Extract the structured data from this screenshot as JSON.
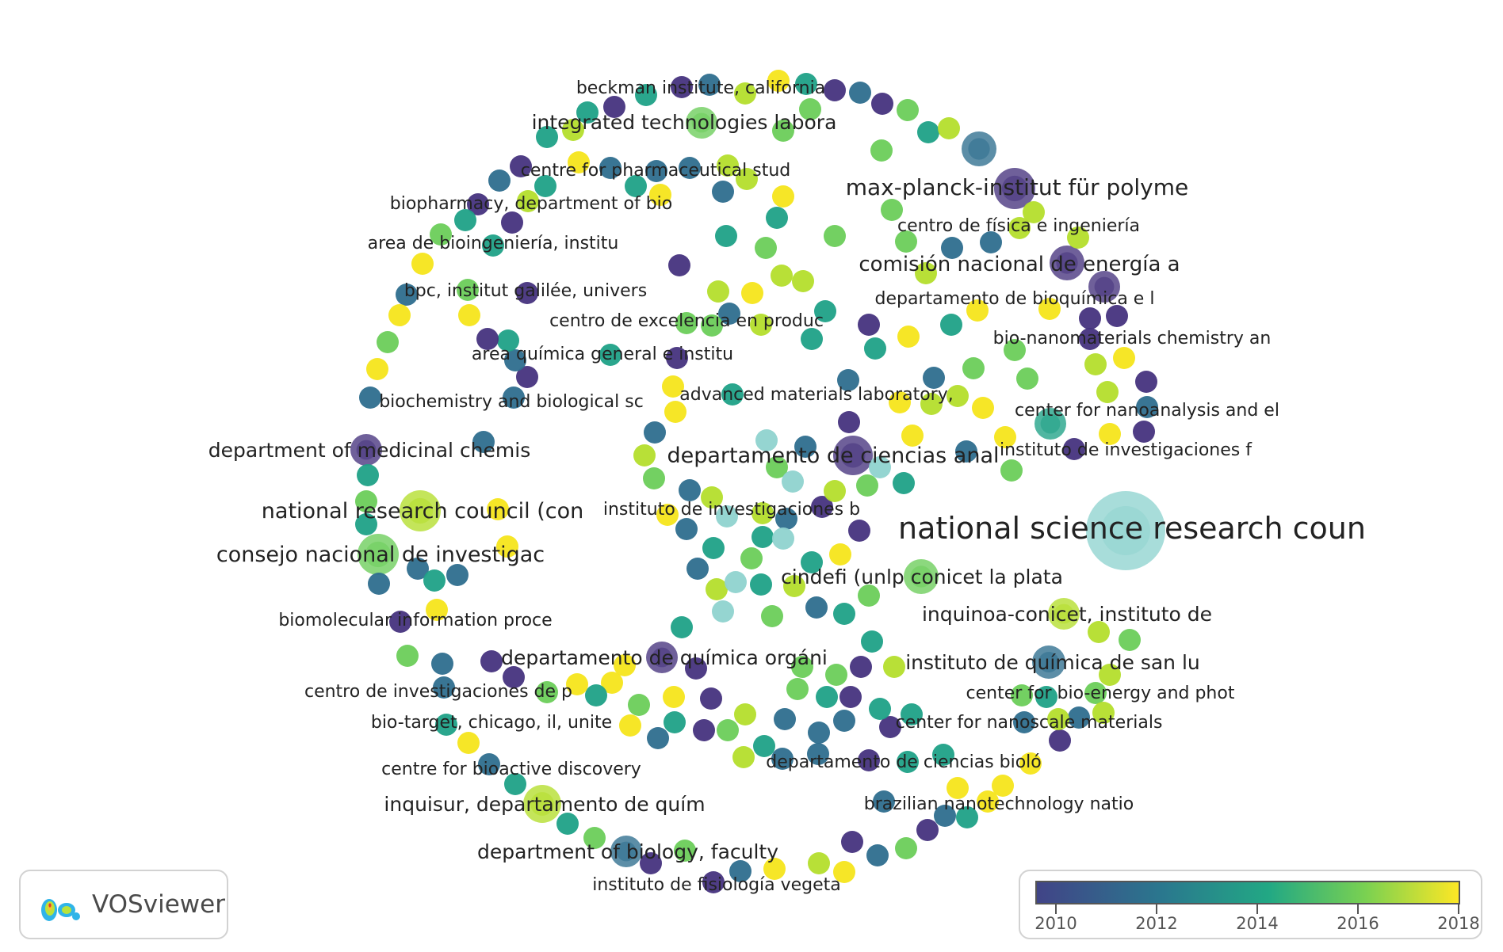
{
  "app": {
    "name": "VOSviewer"
  },
  "legend": {
    "ticks": [
      "2010",
      "2012",
      "2014",
      "2016",
      "2018"
    ]
  },
  "palette": {
    "p": "#46337e",
    "b": "#2e6e8e",
    "t": "#1fa187",
    "g": "#6ccd5a",
    "l": "#b4de2c",
    "y": "#f5e51b",
    "s": "#8fd3cf"
  },
  "labels": [
    "national science research coun",
    "max-planck-institut für polyme",
    "comisión nacional de energía a",
    "departamento de ciencias anal",
    "national research council (con",
    "consejo nacional de investigac",
    "integrated technologies labora",
    "department of medicinal chemis",
    "cindefi (unlp conicet la plata",
    "inquinoa-conicet, instituto de",
    "instituto de química de san lu",
    "departamento de química orgáni",
    "inquisur, departamento de quím",
    "department of biology, faculty",
    "beckman institute, california",
    "centre for pharmaceutical stud",
    "biopharmacy, department of bio",
    "area de bioingeniería, institu",
    "bpc, institut galilée, univers",
    "centro de excelencia en produc",
    "area química general e institu",
    "biochemistry and biological sc",
    "advanced materials laboratory,",
    "instituto de investigaciones b",
    "centro de física e ingeniería",
    "departamento de bioquímica e l",
    "bio-nanomaterials chemistry an",
    "center for nanoanalysis and el",
    "instituto de investigaciones f",
    "biomolecular information proce",
    "centro de investigaciones de p",
    "bio-target, chicago, il, unite",
    "centre for bioactive discovery",
    "center for bio-energy and phot",
    "center for nanoscale materials",
    "departamento de ciencias bioló",
    "brazilian nanotechnology natio",
    "instituto de fisiología vegeta"
  ]
}
